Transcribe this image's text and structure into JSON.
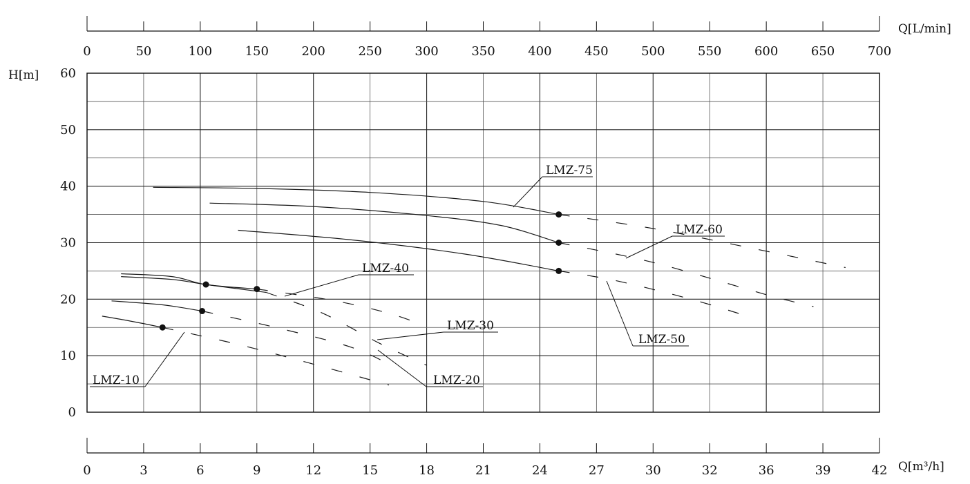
{
  "chart_data": {
    "type": "line",
    "title": "",
    "x_axis_bottom": {
      "label": "Q[m³/h]",
      "tick_labels": [
        "0",
        "3",
        "6",
        "9",
        "12",
        "15",
        "18",
        "21",
        "24",
        "27",
        "30",
        "32",
        "36",
        "39",
        "42"
      ],
      "range": [
        0,
        42
      ]
    },
    "x_axis_top": {
      "label": "Q[L/min]",
      "tick_labels": [
        "0",
        "50",
        "100",
        "150",
        "200",
        "250",
        "300",
        "350",
        "400",
        "450",
        "500",
        "550",
        "600",
        "650",
        "700"
      ]
    },
    "y_axis": {
      "label": "H[m]",
      "tick_labels": [
        "0",
        "10",
        "20",
        "30",
        "40",
        "50",
        "60"
      ],
      "range": [
        0,
        60
      ]
    },
    "grid": true,
    "series": [
      {
        "name": "LMZ-75",
        "solid": [
          [
            3.5,
            39.8
          ],
          [
            9,
            39.6
          ],
          [
            15,
            38.9
          ],
          [
            21,
            37.3
          ],
          [
            25,
            35.0
          ]
        ],
        "dashed": [
          [
            25,
            35.0
          ],
          [
            30,
            32.5
          ],
          [
            36,
            28.5
          ],
          [
            40.2,
            25.6
          ]
        ],
        "marker": [
          25,
          35.0
        ]
      },
      {
        "name": "LMZ-60",
        "solid": [
          [
            6.5,
            37.0
          ],
          [
            12,
            36.4
          ],
          [
            18,
            34.8
          ],
          [
            22,
            33.0
          ],
          [
            25,
            30.0
          ]
        ],
        "dashed": [
          [
            25,
            30.0
          ],
          [
            30,
            26.5
          ],
          [
            36,
            20.8
          ],
          [
            38.5,
            18.7
          ]
        ],
        "marker": [
          25,
          30.0
        ]
      },
      {
        "name": "LMZ-50",
        "solid": [
          [
            8,
            32.2
          ],
          [
            14,
            30.5
          ],
          [
            20,
            28.0
          ],
          [
            25,
            25.0
          ]
        ],
        "dashed": [
          [
            25,
            25.0
          ],
          [
            28,
            23.3
          ],
          [
            32,
            20.0
          ],
          [
            35,
            17.0
          ]
        ],
        "marker": [
          25,
          25.0
        ]
      },
      {
        "name": "LMZ-40",
        "solid": [
          [
            1.8,
            24.5
          ],
          [
            4.5,
            24.0
          ],
          [
            6.3,
            22.6
          ],
          [
            9,
            21.8
          ]
        ],
        "dashed": [
          [
            9,
            21.8
          ],
          [
            13,
            19.8
          ],
          [
            16,
            17.5
          ],
          [
            18,
            15.2
          ]
        ],
        "marker": [
          9,
          21.8
        ]
      },
      {
        "name": "LMZ-30",
        "solid": [
          [
            1.8,
            24.0
          ],
          [
            4.5,
            23.5
          ],
          [
            6.3,
            22.6
          ],
          [
            9.5,
            21.2
          ]
        ],
        "dashed": [
          [
            9.5,
            21.2
          ],
          [
            12.5,
            17.5
          ],
          [
            15.5,
            12.2
          ],
          [
            18,
            8.3
          ]
        ],
        "marker": [
          6.3,
          22.6
        ]
      },
      {
        "name": "LMZ-20",
        "solid": [
          [
            1.3,
            19.7
          ],
          [
            4,
            19.0
          ],
          [
            6.1,
            17.9
          ]
        ],
        "dashed": [
          [
            6.1,
            17.9
          ],
          [
            10,
            15.0
          ],
          [
            14,
            11.5
          ],
          [
            16.3,
            8.0
          ]
        ],
        "marker": [
          6.1,
          17.9
        ]
      },
      {
        "name": "LMZ-10",
        "solid": [
          [
            0.8,
            17.0
          ],
          [
            2.5,
            16.0
          ],
          [
            4,
            15.0
          ]
        ],
        "dashed": [
          [
            4,
            15.0
          ],
          [
            8,
            12.0
          ],
          [
            12,
            8.5
          ],
          [
            16,
            4.8
          ]
        ],
        "marker": [
          4,
          15.0
        ]
      }
    ]
  }
}
